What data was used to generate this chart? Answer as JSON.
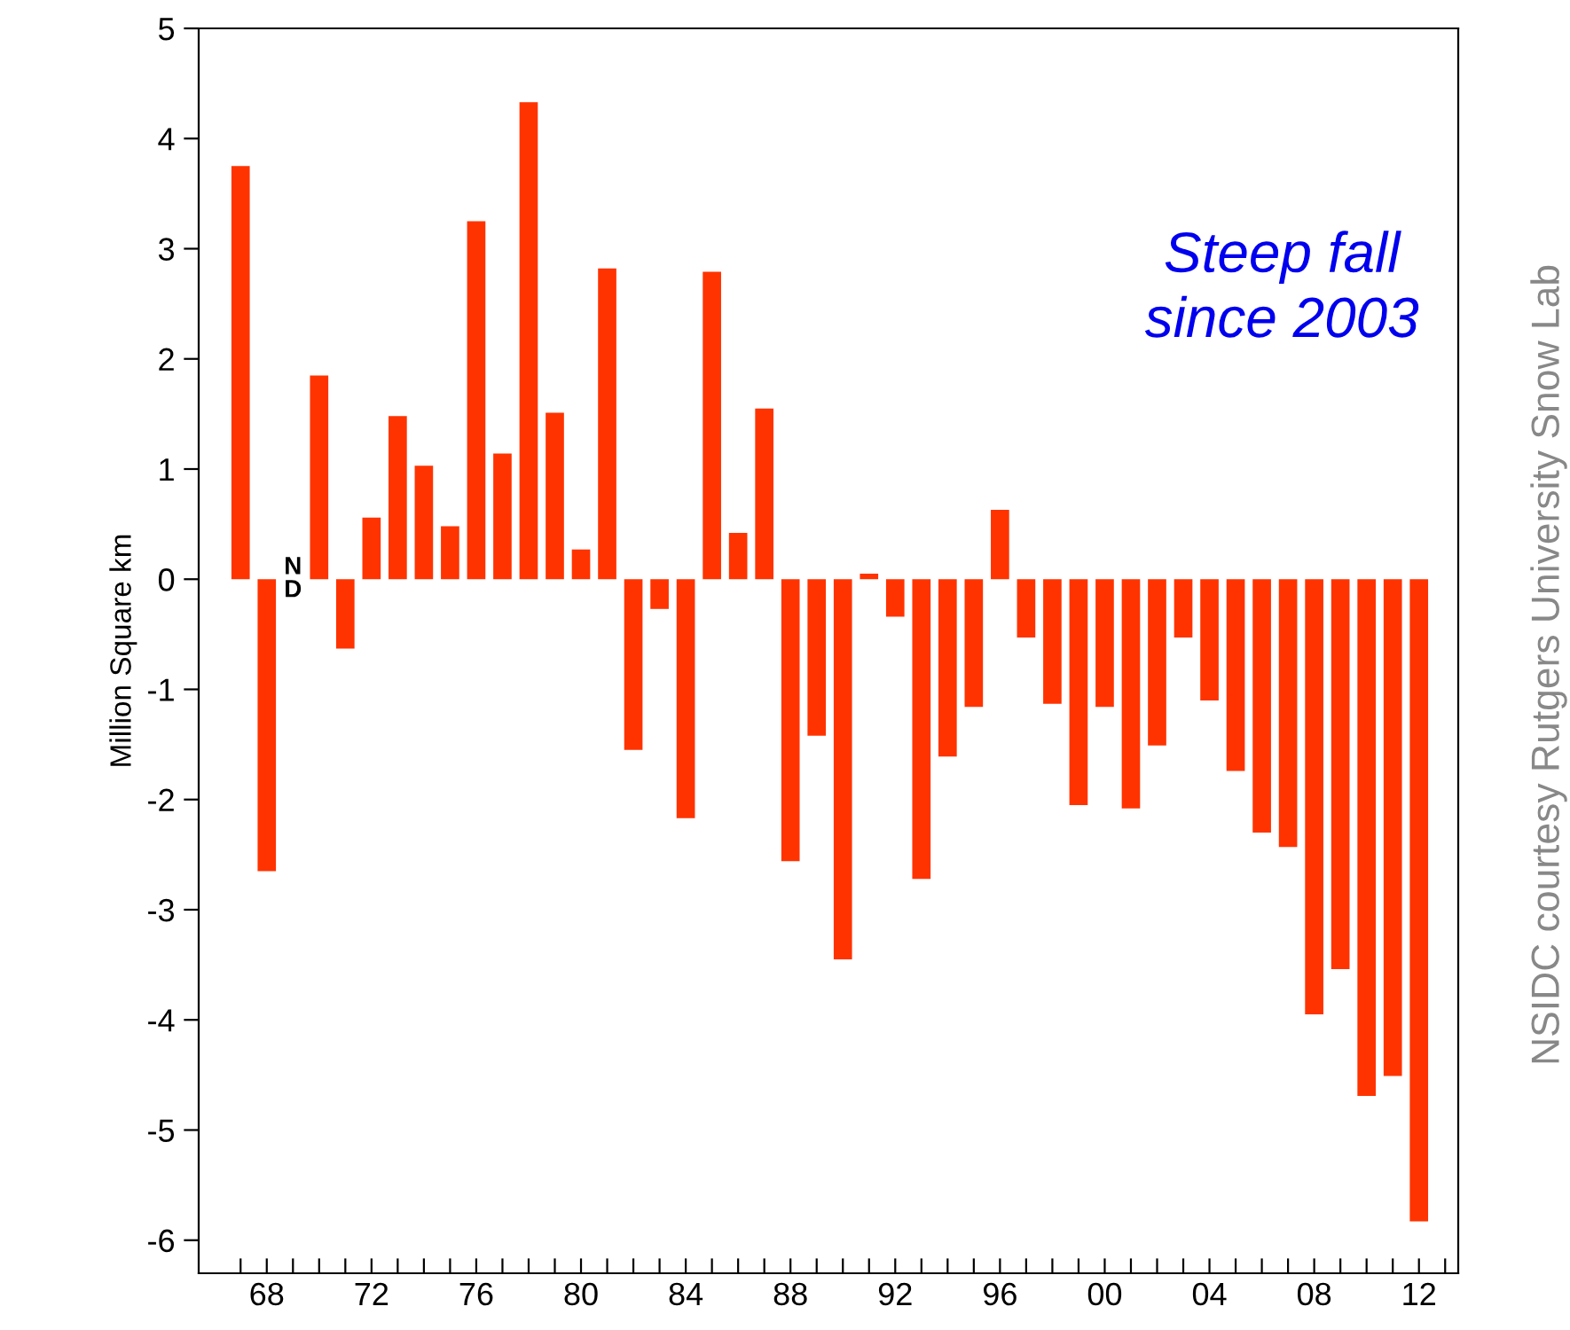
{
  "chart_data": {
    "type": "bar",
    "ylabel": "Million Square km",
    "x": [
      1967,
      1968,
      1969,
      1970,
      1971,
      1972,
      1973,
      1974,
      1975,
      1976,
      1977,
      1978,
      1979,
      1980,
      1981,
      1982,
      1983,
      1984,
      1985,
      1986,
      1987,
      1988,
      1989,
      1990,
      1991,
      1992,
      1993,
      1994,
      1995,
      1996,
      1997,
      1998,
      1999,
      2000,
      2001,
      2002,
      2003,
      2004,
      2005,
      2006,
      2007,
      2008,
      2009,
      2010,
      2011,
      2012
    ],
    "values": [
      3.75,
      -2.65,
      null,
      1.85,
      -0.63,
      0.56,
      1.48,
      1.03,
      0.48,
      3.25,
      1.14,
      4.33,
      1.51,
      0.27,
      2.82,
      -1.55,
      -0.27,
      -2.17,
      2.79,
      0.42,
      1.55,
      -2.56,
      -1.42,
      -3.45,
      0.05,
      -0.34,
      -2.72,
      -1.61,
      -1.16,
      0.63,
      -0.53,
      -1.13,
      -2.05,
      -1.16,
      -2.08,
      -1.51,
      -0.53,
      -1.1,
      -1.74,
      -2.3,
      -2.43,
      -3.95,
      -3.54,
      -4.69,
      -4.51,
      -5.83
    ],
    "color": "#ff3300",
    "xlim": [
      1965.4,
      2013.5
    ],
    "ylim": [
      -6.3,
      5
    ],
    "xticks": [
      {
        "value": 1967,
        "label": null
      },
      {
        "value": 1968,
        "label": "68"
      },
      {
        "value": 1969,
        "label": null
      },
      {
        "value": 1970,
        "label": null
      },
      {
        "value": 1971,
        "label": null
      },
      {
        "value": 1972,
        "label": "72"
      },
      {
        "value": 1973,
        "label": null
      },
      {
        "value": 1974,
        "label": null
      },
      {
        "value": 1975,
        "label": null
      },
      {
        "value": 1976,
        "label": "76"
      },
      {
        "value": 1977,
        "label": null
      },
      {
        "value": 1978,
        "label": null
      },
      {
        "value": 1979,
        "label": null
      },
      {
        "value": 1980,
        "label": "80"
      },
      {
        "value": 1981,
        "label": null
      },
      {
        "value": 1982,
        "label": null
      },
      {
        "value": 1983,
        "label": null
      },
      {
        "value": 1984,
        "label": "84"
      },
      {
        "value": 1985,
        "label": null
      },
      {
        "value": 1986,
        "label": null
      },
      {
        "value": 1987,
        "label": null
      },
      {
        "value": 1988,
        "label": "88"
      },
      {
        "value": 1989,
        "label": null
      },
      {
        "value": 1990,
        "label": null
      },
      {
        "value": 1991,
        "label": null
      },
      {
        "value": 1992,
        "label": "92"
      },
      {
        "value": 1993,
        "label": null
      },
      {
        "value": 1994,
        "label": null
      },
      {
        "value": 1995,
        "label": null
      },
      {
        "value": 1996,
        "label": "96"
      },
      {
        "value": 1997,
        "label": null
      },
      {
        "value": 1998,
        "label": null
      },
      {
        "value": 1999,
        "label": null
      },
      {
        "value": 2000,
        "label": "00"
      },
      {
        "value": 2001,
        "label": null
      },
      {
        "value": 2002,
        "label": null
      },
      {
        "value": 2003,
        "label": null
      },
      {
        "value": 2004,
        "label": "04"
      },
      {
        "value": 2005,
        "label": null
      },
      {
        "value": 2006,
        "label": null
      },
      {
        "value": 2007,
        "label": null
      },
      {
        "value": 2008,
        "label": "08"
      },
      {
        "value": 2009,
        "label": null
      },
      {
        "value": 2010,
        "label": null
      },
      {
        "value": 2011,
        "label": null
      },
      {
        "value": 2012,
        "label": "12"
      },
      {
        "value": 2013,
        "label": null
      }
    ],
    "yticks": [
      -6,
      -5,
      -4,
      -3,
      -2,
      -1,
      0,
      1,
      2,
      3,
      4,
      5
    ],
    "grid": false,
    "legend": false,
    "annotations": [
      "ND",
      "Steep fall since 2003",
      "NSIDC courtesy Rutgers University Snow Lab"
    ]
  }
}
